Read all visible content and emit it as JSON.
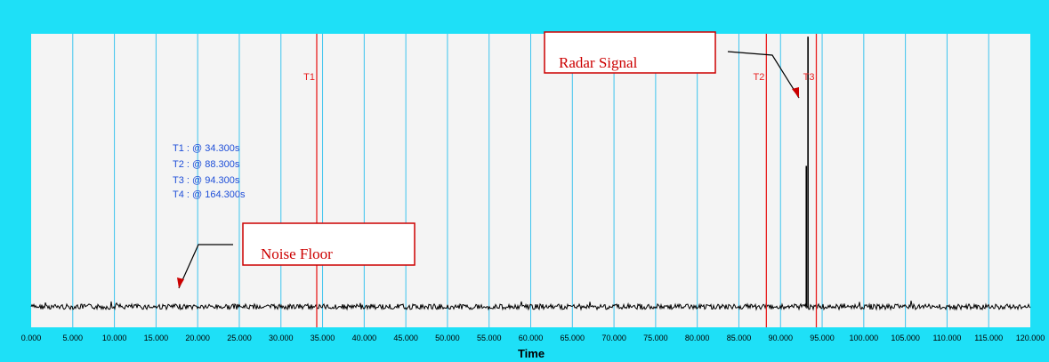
{
  "chart_data": {
    "type": "line",
    "title": "",
    "xlabel": "Time",
    "ylabel": "",
    "xlim": [
      0,
      120
    ],
    "ylim": [
      0,
      1
    ],
    "grid": true,
    "x_ticks": [
      "0.000",
      "5.000",
      "10.000",
      "15.000",
      "20.000",
      "25.000",
      "30.000",
      "35.000",
      "40.000",
      "45.000",
      "50.000",
      "55.000",
      "60.000",
      "65.000",
      "70.000",
      "75.000",
      "80.000",
      "85.000",
      "90.000",
      "95.000",
      "100.000",
      "105.000",
      "110.000",
      "115.000",
      "120.000"
    ],
    "noise_floor_level": 0.07,
    "signal": {
      "x": [
        0,
        93.0,
        93.1,
        93.2,
        93.3,
        93.4,
        120
      ],
      "y": [
        0.07,
        0.07,
        0.55,
        0.07,
        0.99,
        0.07,
        0.07
      ]
    },
    "cursors": [
      {
        "label": "T1",
        "x": 34.3
      },
      {
        "label": "T2",
        "x": 88.3
      },
      {
        "label": "T3",
        "x": 94.3
      }
    ],
    "readout": [
      "T1 : @ 34.300s",
      "T2 : @ 88.300s",
      "T3 : @ 94.300s",
      "T4 : @ 164.300s"
    ],
    "annotations": [
      {
        "text": "Radar Signal"
      },
      {
        "text": "Noise Floor"
      }
    ]
  },
  "colors": {
    "frame": "#1ee0f7",
    "plot_bg": "#f4f4f4",
    "grid": "#3cc3ee",
    "cursor": "#e82020",
    "signal": "#000000",
    "readout": "#1f4fd8",
    "annotation": "#cc0000"
  }
}
